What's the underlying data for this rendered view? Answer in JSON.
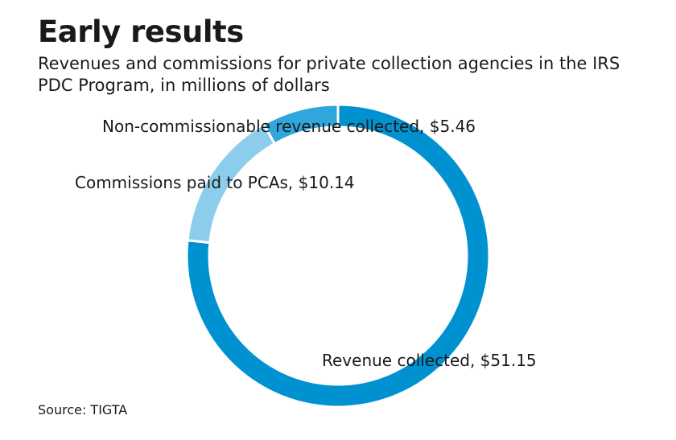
{
  "title": "Early results",
  "subtitle": "Revenues and commissions for private collection agencies in the IRS PDC Program, in millions of dollars",
  "source": "Source: TIGTA",
  "colors": {
    "revenue": "#0092d0",
    "commissions": "#8ccdec",
    "noncommissionable": "#2fa6dc",
    "separator": "#ffffff"
  },
  "chart_data": {
    "type": "pie",
    "style": "donut",
    "direction": "clockwise-from-top",
    "slices": [
      {
        "label": "Revenue collected, $51.15",
        "value": 51.15,
        "color": "#0092d0"
      },
      {
        "label": "Commissions paid to PCAs, $10.14",
        "value": 10.14,
        "color": "#8ccdec"
      },
      {
        "label": "Non-commissionable revenue collected, $5.46",
        "value": 5.46,
        "color": "#2fa6dc"
      }
    ]
  }
}
